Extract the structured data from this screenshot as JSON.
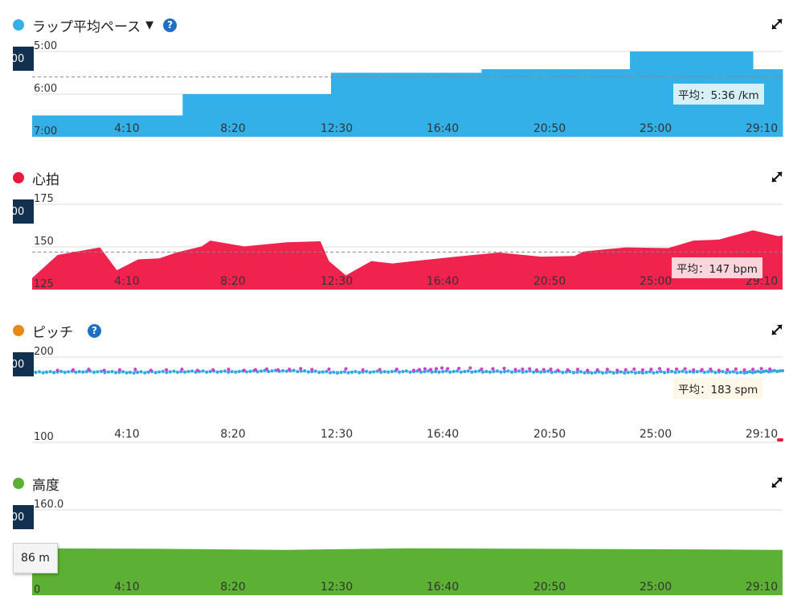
{
  "xticks": [
    "4:10",
    "8:20",
    "12:30",
    "16:40",
    "20:50",
    "25:00",
    "29:10"
  ],
  "badge_text": "00",
  "expand_icon": "expand-icon",
  "help_icon": "help-icon",
  "help_glyph": "?",
  "charts": [
    {
      "id": "pace",
      "title": "ラップ平均ペース",
      "dropdown": "▼",
      "color": "#33b0e8",
      "yticks": [
        "5:00",
        "6:00",
        "7:00"
      ],
      "avg_label": "平均：5:36 /km",
      "chart_data": {
        "type": "area",
        "unit": "min/km",
        "x_range_seconds": [
          0,
          1770
        ],
        "y_range_seconds_per_km": [
          300,
          420
        ],
        "inverted_axis": true,
        "average_seconds_per_km": 336,
        "segments": [
          {
            "start_s": 0,
            "end_s": 355,
            "pace": "6:30"
          },
          {
            "start_s": 355,
            "end_s": 705,
            "pace": "6:00"
          },
          {
            "start_s": 705,
            "end_s": 1060,
            "pace": "5:30"
          },
          {
            "start_s": 1060,
            "end_s": 1410,
            "pace": "5:25"
          },
          {
            "start_s": 1410,
            "end_s": 1700,
            "pace": "5:00"
          },
          {
            "start_s": 1700,
            "end_s": 1770,
            "pace": "5:25"
          }
        ]
      }
    },
    {
      "id": "hr",
      "title": "心拍",
      "color": "#f0234f",
      "yticks": [
        "175",
        "150",
        "125"
      ],
      "avg_label": "平均：147 bpm",
      "chart_data": {
        "type": "area",
        "unit": "bpm",
        "y_range": [
          125,
          175
        ],
        "average": 147,
        "x_seconds": [
          0,
          60,
          160,
          200,
          250,
          300,
          340,
          400,
          420,
          500,
          600,
          680,
          700,
          740,
          800,
          850,
          900,
          1000,
          1100,
          1200,
          1280,
          1300,
          1400,
          1500,
          1560,
          1620,
          1700,
          1760,
          1770
        ],
        "values": [
          131,
          146,
          149,
          137,
          142,
          144,
          146,
          151,
          153,
          151,
          152,
          154,
          141,
          134,
          141,
          141,
          141,
          145,
          146,
          145,
          144,
          148,
          149,
          150,
          153,
          155,
          159,
          157,
          156
        ]
      }
    },
    {
      "id": "cadence",
      "title": "ピッチ",
      "color": "#e8871a",
      "yticks": [
        "200",
        "100"
      ],
      "avg_label": "平均：183 spm",
      "chart_data": {
        "type": "scatter",
        "unit": "spm",
        "y_range": [
          100,
          200
        ],
        "average": 183,
        "series": [
          {
            "color": "#33a7e0",
            "x_seconds": [
              0,
              120,
              240,
              360,
              480,
              600,
              720,
              840,
              960,
              1080,
              1200,
              1320,
              1440,
              1560,
              1680,
              1770
            ],
            "values": [
              182,
              183,
              182,
              183,
              183,
              184,
              182,
              183,
              183,
              183,
              183,
              182,
              182,
              183,
              182,
              184
            ]
          },
          {
            "color": "#d63ad0",
            "x_seconds": [
              60,
              280,
              500,
              660,
              900,
              980,
              1140,
              1240,
              1380,
              1500,
              1620,
              1740
            ],
            "values": [
              185,
              185,
              185,
              186,
              185,
              187,
              186,
              185,
              185,
              186,
              185,
              186
            ]
          }
        ]
      }
    },
    {
      "id": "elev",
      "title": "高度",
      "color": "#5cb034",
      "yticks": [
        "160.0",
        "0"
      ],
      "tooltip": "86 m",
      "chart_data": {
        "type": "area",
        "unit": "m",
        "y_range": [
          0,
          160
        ],
        "x_seconds": [
          0,
          300,
          600,
          900,
          1200,
          1500,
          1770
        ],
        "values": [
          88,
          87,
          85,
          88,
          87,
          86,
          85
        ]
      }
    }
  ]
}
